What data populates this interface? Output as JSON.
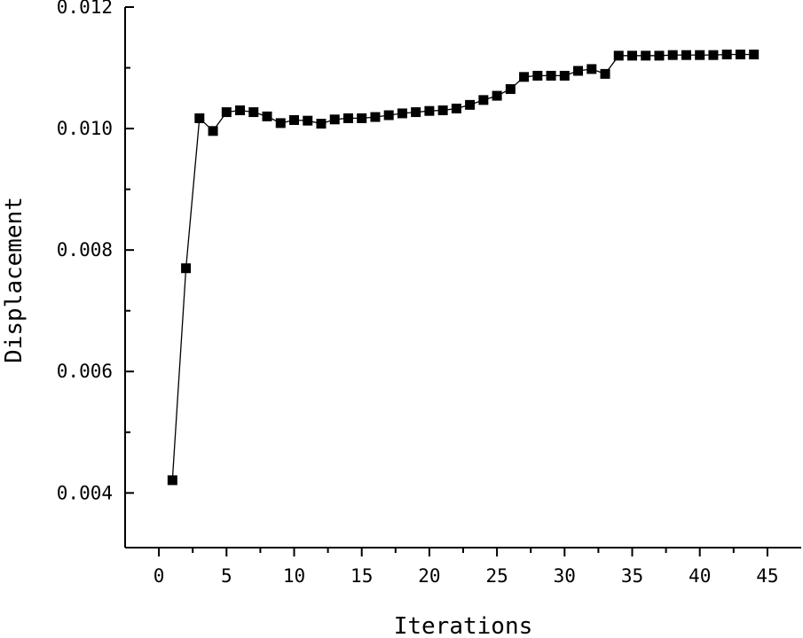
{
  "chart_data": {
    "type": "line",
    "title": "",
    "xlabel": "Iterations",
    "ylabel": "Displacement",
    "xlim": [
      -2.5,
      47.5
    ],
    "ylim": [
      0.0031,
      0.012
    ],
    "x_ticks": [
      0,
      5,
      10,
      15,
      20,
      25,
      30,
      35,
      40,
      45
    ],
    "x_tick_labels": [
      "0",
      "5",
      "10",
      "15",
      "20",
      "25",
      "30",
      "35",
      "40",
      "45"
    ],
    "y_ticks": [
      0.004,
      0.006,
      0.008,
      0.01,
      0.012
    ],
    "y_tick_labels": [
      "0.004",
      "0.006",
      "0.008",
      "0.010",
      "0.012"
    ],
    "grid": false,
    "marker": "square",
    "series": [
      {
        "name": "Displacement",
        "x": [
          1,
          2,
          3,
          4,
          5,
          6,
          7,
          8,
          9,
          10,
          11,
          12,
          13,
          14,
          15,
          16,
          17,
          18,
          19,
          20,
          21,
          22,
          23,
          24,
          25,
          26,
          27,
          28,
          29,
          30,
          31,
          32,
          33,
          34,
          35,
          36,
          37,
          38,
          39,
          40,
          41,
          42,
          43,
          44
        ],
        "values": [
          0.00421,
          0.0077,
          0.01017,
          0.00996,
          0.01027,
          0.0103,
          0.01027,
          0.0102,
          0.01009,
          0.01014,
          0.01013,
          0.01008,
          0.01015,
          0.01017,
          0.01017,
          0.01019,
          0.01022,
          0.01025,
          0.01027,
          0.01029,
          0.0103,
          0.01033,
          0.01039,
          0.01047,
          0.01054,
          0.01065,
          0.01085,
          0.01087,
          0.01087,
          0.01087,
          0.01095,
          0.01098,
          0.0109,
          0.0112,
          0.0112,
          0.0112,
          0.0112,
          0.01121,
          0.01121,
          0.01121,
          0.01121,
          0.01122,
          0.01122,
          0.01122
        ]
      }
    ]
  }
}
